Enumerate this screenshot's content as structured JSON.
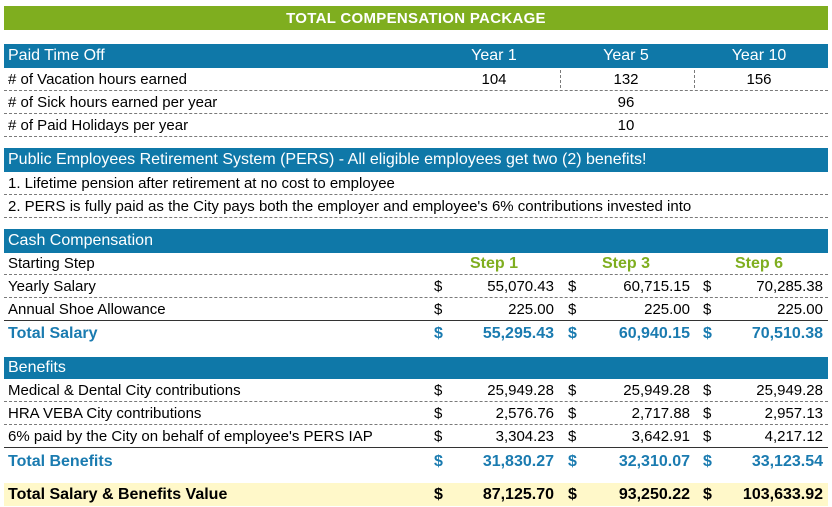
{
  "title": "TOTAL COMPENSATION PACKAGE",
  "pto": {
    "header": "Paid Time Off",
    "year_labels": [
      "Year 1",
      "Year 5",
      "Year 10"
    ],
    "rows": [
      {
        "label": "# of Vacation hours earned",
        "y1": "104",
        "y5": "132",
        "y10": "156"
      },
      {
        "label": "# of Sick hours earned per year",
        "y5": "96"
      },
      {
        "label": "# of Paid Holidays per year",
        "y5": "10"
      }
    ]
  },
  "pers": {
    "header": "Public Employees Retirement System (PERS) - All eligible employees get two (2) benefits!",
    "items": [
      "1. Lifetime pension after retirement at no cost to employee",
      "2.  PERS is fully paid as the City pays both the employer and employee's 6% contributions invested into"
    ]
  },
  "cash": {
    "header": "Cash Compensation",
    "starting_step_label": "Starting Step",
    "steps": [
      "Step 1",
      "Step 3",
      "Step 6"
    ],
    "currency": "$",
    "rows": [
      {
        "label": "Yearly Salary",
        "values": [
          "55,070.43",
          "60,715.15",
          "70,285.38"
        ]
      },
      {
        "label": "Annual Shoe Allowance",
        "values": [
          "225.00",
          "225.00",
          "225.00"
        ]
      }
    ],
    "total": {
      "label": "Total Salary",
      "values": [
        "55,295.43",
        "60,940.15",
        "70,510.38"
      ]
    }
  },
  "benefits": {
    "header": "Benefits",
    "rows": [
      {
        "label": "Medical & Dental City contributions",
        "values": [
          "25,949.28",
          "25,949.28",
          "25,949.28"
        ]
      },
      {
        "label": "HRA VEBA City contributions",
        "values": [
          "2,576.76",
          "2,717.88",
          "2,957.13"
        ]
      },
      {
        "label": "6% paid by the City on behalf of employee's PERS IAP",
        "values": [
          "3,304.23",
          "3,642.91",
          "4,217.12"
        ]
      }
    ],
    "total": {
      "label": "Total Benefits",
      "values": [
        "31,830.27",
        "32,310.07",
        "33,123.54"
      ]
    }
  },
  "grand_total": {
    "label": "Total Salary & Benefits Value",
    "values": [
      "87,125.70",
      "93,250.22",
      "103,633.92"
    ]
  },
  "colors": {
    "green": "#7fae1f",
    "blue_header": "#0f78a8",
    "blue_text": "#1a7bb0",
    "yellow_total": "#fff8c9"
  }
}
